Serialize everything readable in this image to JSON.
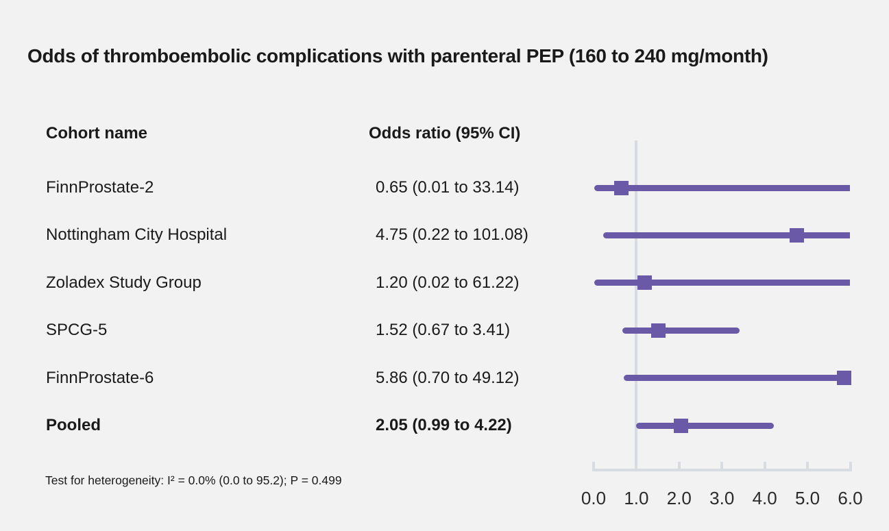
{
  "chart_data": {
    "type": "forest",
    "title": "Odds of thromboembolic complications with parenteral PEP (160 to 240 mg/month)",
    "columns": {
      "cohort": "Cohort name",
      "odds_ratio": "Odds ratio (95% CI)"
    },
    "rows": [
      {
        "label": "FinnProstate-2",
        "display": "0.65 (0.01 to 33.14)",
        "or": 0.65,
        "lo": 0.01,
        "hi": 33.14,
        "bold": false
      },
      {
        "label": "Nottingham City Hospital",
        "display": "4.75 (0.22 to 101.08)",
        "or": 4.75,
        "lo": 0.22,
        "hi": 101.08,
        "bold": false
      },
      {
        "label": "Zoladex Study Group",
        "display": "1.20 (0.02 to 61.22)",
        "or": 1.2,
        "lo": 0.02,
        "hi": 61.22,
        "bold": false
      },
      {
        "label": "SPCG-5",
        "display": "1.52 (0.67 to 3.41)",
        "or": 1.52,
        "lo": 0.67,
        "hi": 3.41,
        "bold": false
      },
      {
        "label": "FinnProstate-6",
        "display": "5.86 (0.70 to 49.12)",
        "or": 5.86,
        "lo": 0.7,
        "hi": 49.12,
        "bold": false
      },
      {
        "label": "Pooled",
        "display": "2.05 (0.99 to 4.22)",
        "or": 2.05,
        "lo": 0.99,
        "hi": 4.22,
        "bold": true
      }
    ],
    "axis": {
      "min": 0,
      "max": 6,
      "tick_labels": [
        "0.0",
        "1.0",
        "2.0",
        "3.0",
        "4.0",
        "5.0",
        "6.0"
      ],
      "reference_line": 1.0
    },
    "footnote": "Test for heterogeneity: I² = 0.0% (0.0 to 95.2); P = 0.499",
    "colors": {
      "marker": "#6a59a7",
      "axis": "#d7dbe2",
      "text": "#1a1a1a",
      "background": "#f2f2f2"
    }
  }
}
